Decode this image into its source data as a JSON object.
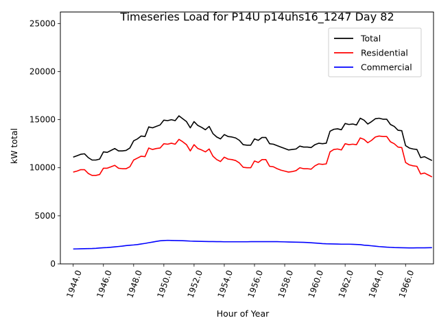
{
  "chart_data": {
    "type": "line",
    "title": "Timeseries Load for P14U p14uhs16_1247  Day 82",
    "xlabel": "Hour of Year",
    "ylabel": "kW total",
    "xlim": [
      1943.15,
      1967.85
    ],
    "ylim": [
      0,
      26200
    ],
    "x_ticks": [
      1944,
      1946,
      1948,
      1950,
      1952,
      1954,
      1956,
      1958,
      1960,
      1962,
      1964,
      1966
    ],
    "x_tick_labels": [
      "1944.0",
      "1946.0",
      "1948.0",
      "1950.0",
      "1952.0",
      "1954.0",
      "1956.0",
      "1958.0",
      "1960.0",
      "1962.0",
      "1964.0",
      "1966.0"
    ],
    "y_ticks": [
      0,
      5000,
      10000,
      15000,
      20000,
      25000
    ],
    "y_tick_labels": [
      "0",
      "5000",
      "10000",
      "15000",
      "20000",
      "25000"
    ],
    "legend_position": "top-right",
    "grid": false,
    "x_start": 1944.0,
    "x_step": 0.25,
    "series": [
      {
        "name": "Total",
        "color": "#000000",
        "values": [
          11100,
          11250,
          11400,
          11450,
          11050,
          10800,
          10800,
          10900,
          11650,
          11600,
          11800,
          12000,
          11750,
          11750,
          11800,
          12050,
          12800,
          13000,
          13300,
          13250,
          14250,
          14150,
          14300,
          14450,
          14950,
          14900,
          15000,
          14900,
          15400,
          15100,
          14800,
          14150,
          14800,
          14400,
          14200,
          13950,
          14300,
          13550,
          13200,
          13000,
          13450,
          13250,
          13200,
          13100,
          12850,
          12400,
          12350,
          12350,
          13000,
          12850,
          13150,
          13150,
          12500,
          12450,
          12300,
          12150,
          12000,
          11850,
          11900,
          11950,
          12250,
          12150,
          12150,
          12100,
          12400,
          12550,
          12500,
          12550,
          13800,
          14000,
          14050,
          13950,
          14600,
          14500,
          14550,
          14450,
          15150,
          14950,
          14550,
          14800,
          15100,
          15150,
          15050,
          15050,
          14500,
          14300,
          13900,
          13850,
          12300,
          12050,
          11950,
          11900,
          11050,
          11150,
          10950,
          10750
        ]
      },
      {
        "name": "Residential",
        "color": "#ff0000",
        "values": [
          9550,
          9650,
          9800,
          9800,
          9400,
          9200,
          9200,
          9300,
          9950,
          9950,
          10100,
          10250,
          9950,
          9900,
          9900,
          10100,
          10800,
          11000,
          11200,
          11150,
          12050,
          11900,
          12000,
          12050,
          12500,
          12450,
          12550,
          12450,
          12950,
          12700,
          12400,
          11750,
          12400,
          12000,
          11850,
          11650,
          11950,
          11200,
          10850,
          10650,
          11100,
          10900,
          10850,
          10750,
          10500,
          10050,
          10000,
          10000,
          10700,
          10550,
          10850,
          10850,
          10150,
          10100,
          9900,
          9750,
          9650,
          9550,
          9600,
          9700,
          10000,
          9900,
          9900,
          9850,
          10200,
          10400,
          10350,
          10400,
          11650,
          11900,
          11950,
          11850,
          12500,
          12400,
          12450,
          12400,
          13100,
          12950,
          12600,
          12850,
          13200,
          13300,
          13250,
          13250,
          12700,
          12500,
          12150,
          12100,
          10550,
          10300,
          10200,
          10150,
          9350,
          9450,
          9250,
          9050
        ]
      },
      {
        "name": "Commercial",
        "color": "#0000ff",
        "values": [
          1550,
          1560,
          1570,
          1580,
          1590,
          1600,
          1620,
          1650,
          1680,
          1700,
          1730,
          1770,
          1810,
          1850,
          1900,
          1940,
          1970,
          2010,
          2070,
          2130,
          2200,
          2270,
          2340,
          2400,
          2430,
          2450,
          2440,
          2430,
          2420,
          2410,
          2390,
          2370,
          2360,
          2350,
          2340,
          2330,
          2320,
          2320,
          2310,
          2310,
          2300,
          2300,
          2300,
          2300,
          2300,
          2300,
          2300,
          2310,
          2310,
          2310,
          2310,
          2310,
          2310,
          2310,
          2310,
          2300,
          2290,
          2280,
          2270,
          2260,
          2250,
          2240,
          2220,
          2200,
          2170,
          2140,
          2110,
          2090,
          2080,
          2070,
          2060,
          2050,
          2050,
          2050,
          2040,
          2020,
          2000,
          1950,
          1920,
          1880,
          1840,
          1800,
          1770,
          1740,
          1720,
          1700,
          1690,
          1680,
          1670,
          1660,
          1660,
          1670,
          1670,
          1670,
          1680,
          1690
        ]
      }
    ]
  }
}
